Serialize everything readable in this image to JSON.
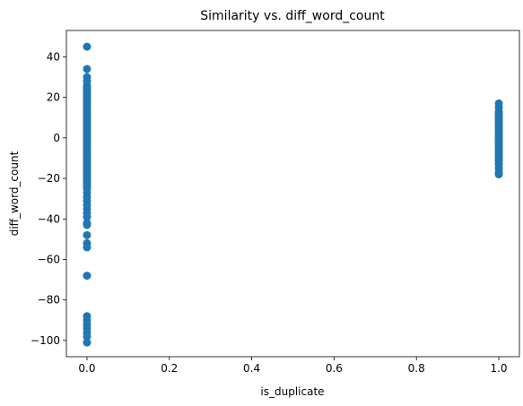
{
  "chart_data": {
    "type": "scatter",
    "title": "Similarity vs. diff_word_count",
    "xlabel": "is_duplicate",
    "ylabel": "diff_word_count",
    "xlim": [
      -0.05,
      1.05
    ],
    "ylim": [
      -108,
      53
    ],
    "xticks": [
      0.0,
      0.2,
      0.4,
      0.6,
      0.8,
      1.0
    ],
    "xtick_labels": [
      "0.0",
      "0.2",
      "0.4",
      "0.6",
      "0.8",
      "1.0"
    ],
    "yticks": [
      -100,
      -80,
      -60,
      -40,
      -20,
      0,
      20,
      40
    ],
    "ytick_labels": [
      "−100",
      "−80",
      "−60",
      "−40",
      "−20",
      "0",
      "20",
      "40"
    ],
    "grid": false,
    "color": "#1f77b4",
    "points": [
      {
        "x": 0,
        "y": 45
      },
      {
        "x": 0,
        "y": 34
      },
      {
        "x": 0,
        "y": 30
      },
      {
        "x": 0,
        "y": 28
      },
      {
        "x": 0,
        "y": 26
      },
      {
        "x": 0,
        "y": 25
      },
      {
        "x": 0,
        "y": 24
      },
      {
        "x": 0,
        "y": 23
      },
      {
        "x": 0,
        "y": 22
      },
      {
        "x": 0,
        "y": 21
      },
      {
        "x": 0,
        "y": 20
      },
      {
        "x": 0,
        "y": 19
      },
      {
        "x": 0,
        "y": 18
      },
      {
        "x": 0,
        "y": 17
      },
      {
        "x": 0,
        "y": 16
      },
      {
        "x": 0,
        "y": 15
      },
      {
        "x": 0,
        "y": 14
      },
      {
        "x": 0,
        "y": 13
      },
      {
        "x": 0,
        "y": 12
      },
      {
        "x": 0,
        "y": 11
      },
      {
        "x": 0,
        "y": 10
      },
      {
        "x": 0,
        "y": 9
      },
      {
        "x": 0,
        "y": 8
      },
      {
        "x": 0,
        "y": 7
      },
      {
        "x": 0,
        "y": 6
      },
      {
        "x": 0,
        "y": 5
      },
      {
        "x": 0,
        "y": 4
      },
      {
        "x": 0,
        "y": 3
      },
      {
        "x": 0,
        "y": 2
      },
      {
        "x": 0,
        "y": 1
      },
      {
        "x": 0,
        "y": 0
      },
      {
        "x": 0,
        "y": -1
      },
      {
        "x": 0,
        "y": -2
      },
      {
        "x": 0,
        "y": -3
      },
      {
        "x": 0,
        "y": -4
      },
      {
        "x": 0,
        "y": -5
      },
      {
        "x": 0,
        "y": -6
      },
      {
        "x": 0,
        "y": -7
      },
      {
        "x": 0,
        "y": -8
      },
      {
        "x": 0,
        "y": -9
      },
      {
        "x": 0,
        "y": -10
      },
      {
        "x": 0,
        "y": -11
      },
      {
        "x": 0,
        "y": -12
      },
      {
        "x": 0,
        "y": -13
      },
      {
        "x": 0,
        "y": -14
      },
      {
        "x": 0,
        "y": -15
      },
      {
        "x": 0,
        "y": -16
      },
      {
        "x": 0,
        "y": -17
      },
      {
        "x": 0,
        "y": -18
      },
      {
        "x": 0,
        "y": -19
      },
      {
        "x": 0,
        "y": -20
      },
      {
        "x": 0,
        "y": -21
      },
      {
        "x": 0,
        "y": -22
      },
      {
        "x": 0,
        "y": -23
      },
      {
        "x": 0,
        "y": -24
      },
      {
        "x": 0,
        "y": -25
      },
      {
        "x": 0,
        "y": -27
      },
      {
        "x": 0,
        "y": -29
      },
      {
        "x": 0,
        "y": -31
      },
      {
        "x": 0,
        "y": -33
      },
      {
        "x": 0,
        "y": -35
      },
      {
        "x": 0,
        "y": -37
      },
      {
        "x": 0,
        "y": -39
      },
      {
        "x": 0,
        "y": -42
      },
      {
        "x": 0,
        "y": -43
      },
      {
        "x": 0,
        "y": -48
      },
      {
        "x": 0,
        "y": -52
      },
      {
        "x": 0,
        "y": -54
      },
      {
        "x": 0,
        "y": -68
      },
      {
        "x": 0,
        "y": -88
      },
      {
        "x": 0,
        "y": -90
      },
      {
        "x": 0,
        "y": -92
      },
      {
        "x": 0,
        "y": -94
      },
      {
        "x": 0,
        "y": -96
      },
      {
        "x": 0,
        "y": -98
      },
      {
        "x": 0,
        "y": -101
      },
      {
        "x": 1,
        "y": 17
      },
      {
        "x": 1,
        "y": 15
      },
      {
        "x": 1,
        "y": 13
      },
      {
        "x": 1,
        "y": 12
      },
      {
        "x": 1,
        "y": 11
      },
      {
        "x": 1,
        "y": 10
      },
      {
        "x": 1,
        "y": 9
      },
      {
        "x": 1,
        "y": 8
      },
      {
        "x": 1,
        "y": 7
      },
      {
        "x": 1,
        "y": 6
      },
      {
        "x": 1,
        "y": 5
      },
      {
        "x": 1,
        "y": 4
      },
      {
        "x": 1,
        "y": 3
      },
      {
        "x": 1,
        "y": 2
      },
      {
        "x": 1,
        "y": 1
      },
      {
        "x": 1,
        "y": 0
      },
      {
        "x": 1,
        "y": -1
      },
      {
        "x": 1,
        "y": -2
      },
      {
        "x": 1,
        "y": -3
      },
      {
        "x": 1,
        "y": -4
      },
      {
        "x": 1,
        "y": -5
      },
      {
        "x": 1,
        "y": -6
      },
      {
        "x": 1,
        "y": -7
      },
      {
        "x": 1,
        "y": -8
      },
      {
        "x": 1,
        "y": -9
      },
      {
        "x": 1,
        "y": -10
      },
      {
        "x": 1,
        "y": -11
      },
      {
        "x": 1,
        "y": -12
      },
      {
        "x": 1,
        "y": -13
      },
      {
        "x": 1,
        "y": -15
      },
      {
        "x": 1,
        "y": -17
      },
      {
        "x": 1,
        "y": -18
      }
    ]
  }
}
